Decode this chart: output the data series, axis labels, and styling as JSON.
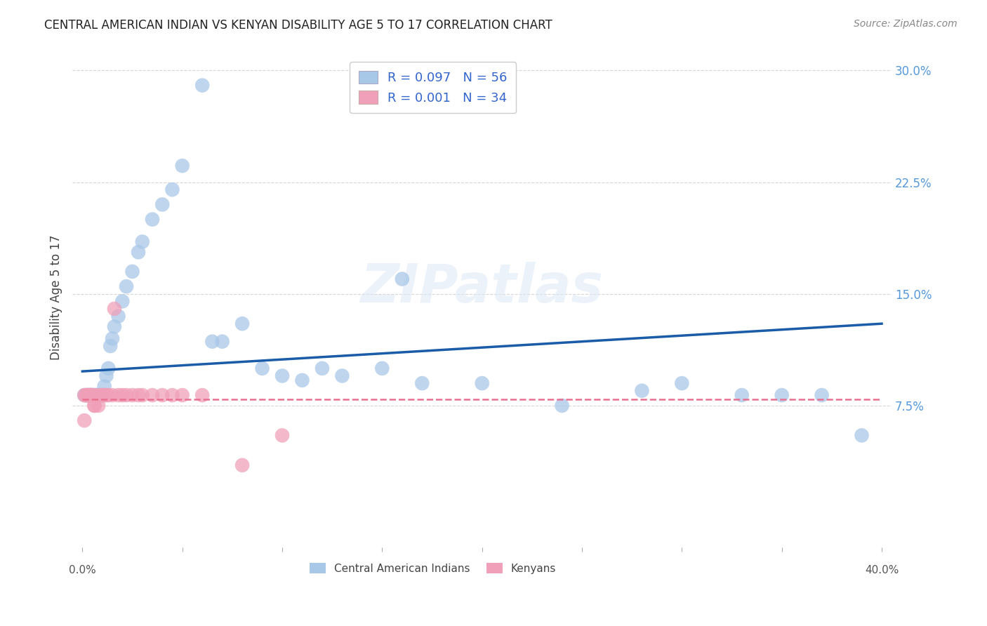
{
  "title": "CENTRAL AMERICAN INDIAN VS KENYAN DISABILITY AGE 5 TO 17 CORRELATION CHART",
  "source": "Source: ZipAtlas.com",
  "ylabel": "Disability Age 5 to 17",
  "xlim": [
    -0.005,
    0.405
  ],
  "ylim": [
    -0.02,
    0.315
  ],
  "background_color": "#ffffff",
  "grid_color": "#cccccc",
  "watermark": "ZIPatlas",
  "legend1_r": "R = 0.097",
  "legend1_n": "N = 56",
  "legend2_r": "R = 0.001",
  "legend2_n": "N = 34",
  "legend_label1": "Central American Indians",
  "legend_label2": "Kenyans",
  "blue_color": "#a8c8e8",
  "pink_color": "#f0a0b8",
  "blue_line_color": "#1a5ca8",
  "pink_line_color": "#e87090",
  "right_tick_color": "#5599dd",
  "title_color": "#222222",
  "source_color": "#888888",
  "blue_x": [
    0.001,
    0.002,
    0.002,
    0.003,
    0.003,
    0.004,
    0.004,
    0.004,
    0.005,
    0.005,
    0.006,
    0.006,
    0.007,
    0.007,
    0.008,
    0.008,
    0.009,
    0.009,
    0.01,
    0.01,
    0.011,
    0.012,
    0.013,
    0.014,
    0.015,
    0.016,
    0.018,
    0.02,
    0.022,
    0.025,
    0.028,
    0.03,
    0.035,
    0.04,
    0.045,
    0.05,
    0.06,
    0.065,
    0.07,
    0.08,
    0.09,
    0.1,
    0.11,
    0.12,
    0.13,
    0.15,
    0.16,
    0.17,
    0.2,
    0.24,
    0.28,
    0.3,
    0.33,
    0.35,
    0.37,
    0.39
  ],
  "blue_y": [
    0.082,
    0.082,
    0.082,
    0.082,
    0.082,
    0.082,
    0.082,
    0.082,
    0.082,
    0.082,
    0.082,
    0.082,
    0.082,
    0.082,
    0.082,
    0.082,
    0.082,
    0.082,
    0.082,
    0.082,
    0.088,
    0.095,
    0.1,
    0.115,
    0.12,
    0.128,
    0.135,
    0.145,
    0.155,
    0.165,
    0.178,
    0.185,
    0.2,
    0.21,
    0.22,
    0.236,
    0.29,
    0.118,
    0.118,
    0.13,
    0.1,
    0.095,
    0.092,
    0.1,
    0.095,
    0.1,
    0.16,
    0.09,
    0.09,
    0.075,
    0.085,
    0.09,
    0.082,
    0.082,
    0.082,
    0.055
  ],
  "pink_x": [
    0.001,
    0.001,
    0.002,
    0.002,
    0.003,
    0.003,
    0.004,
    0.004,
    0.005,
    0.005,
    0.006,
    0.006,
    0.007,
    0.008,
    0.009,
    0.01,
    0.011,
    0.012,
    0.013,
    0.015,
    0.016,
    0.018,
    0.02,
    0.022,
    0.025,
    0.028,
    0.03,
    0.035,
    0.04,
    0.045,
    0.05,
    0.06,
    0.08,
    0.1
  ],
  "pink_y": [
    0.082,
    0.065,
    0.082,
    0.082,
    0.082,
    0.082,
    0.082,
    0.082,
    0.082,
    0.082,
    0.075,
    0.075,
    0.082,
    0.075,
    0.082,
    0.082,
    0.082,
    0.082,
    0.082,
    0.082,
    0.14,
    0.082,
    0.082,
    0.082,
    0.082,
    0.082,
    0.082,
    0.082,
    0.082,
    0.082,
    0.082,
    0.082,
    0.035,
    0.055
  ],
  "blue_line_x": [
    0.0,
    0.4
  ],
  "blue_line_y": [
    0.098,
    0.13
  ],
  "pink_line_x": [
    0.0,
    0.4
  ],
  "pink_line_y": [
    0.079,
    0.079
  ],
  "yticks": [
    0.075,
    0.15,
    0.225,
    0.3
  ],
  "yticklabels": [
    "7.5%",
    "15.0%",
    "22.5%",
    "30.0%"
  ]
}
